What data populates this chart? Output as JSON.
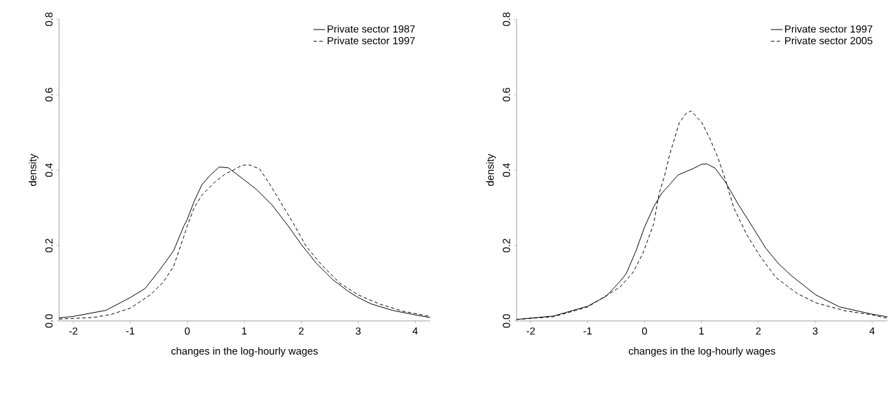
{
  "chart_data": [
    {
      "type": "line",
      "xlabel": "changes in the log-hourly wages",
      "ylabel": "density",
      "xlim": [
        -2.25,
        4.26
      ],
      "ylim": [
        0,
        0.8
      ],
      "xticks": [
        -2,
        -1,
        0,
        1,
        2,
        3,
        4
      ],
      "yticks": [
        {
          "value": 0,
          "label": "0.0"
        },
        {
          "value": 0.2,
          "label": "0.2"
        },
        {
          "value": 0.4,
          "label": "0.4"
        },
        {
          "value": 0.6,
          "label": "0.6"
        },
        {
          "value": 0.8,
          "label": "0.8"
        }
      ],
      "legend": "top right",
      "grid": false,
      "series": [
        {
          "name": "Private sector 1987",
          "color": "#000000",
          "line_style": "solid",
          "x": [
            -2.25,
            -2,
            -1.43,
            -1,
            -0.74,
            -0.47,
            -0.24,
            -0.06,
            0,
            0.12,
            0.26,
            0.4,
            0.56,
            0.72,
            0.86,
            0.99,
            1.22,
            1.49,
            1.77,
            2.0,
            2.27,
            2.55,
            2.82,
            3.0,
            3.23,
            3.6,
            4.0,
            4.26
          ],
          "values": [
            0.008,
            0.012,
            0.028,
            0.062,
            0.086,
            0.138,
            0.186,
            0.252,
            0.269,
            0.317,
            0.362,
            0.386,
            0.408,
            0.406,
            0.39,
            0.375,
            0.348,
            0.307,
            0.252,
            0.203,
            0.152,
            0.11,
            0.079,
            0.062,
            0.045,
            0.028,
            0.016,
            0.009
          ]
        },
        {
          "name": "Private sector 1997",
          "color": "#000000",
          "line_style": "dashed",
          "x": [
            -2.25,
            -1.66,
            -1.34,
            -1,
            -0.65,
            -0.42,
            -0.24,
            -0.06,
            0,
            0.12,
            0.26,
            0.49,
            0.67,
            0.81,
            0.95,
            1.08,
            1.27,
            1.45,
            1.63,
            1.86,
            2.09,
            2.36,
            2.68,
            3.0,
            3.37,
            3.78,
            4.26
          ],
          "values": [
            0.005,
            0.009,
            0.017,
            0.034,
            0.069,
            0.103,
            0.145,
            0.224,
            0.252,
            0.3,
            0.334,
            0.369,
            0.39,
            0.4,
            0.412,
            0.414,
            0.403,
            0.362,
            0.317,
            0.259,
            0.197,
            0.148,
            0.1,
            0.069,
            0.045,
            0.026,
            0.012
          ]
        }
      ]
    },
    {
      "type": "line",
      "xlabel": "changes in the log-hourly wages",
      "ylabel": "density",
      "xlim": [
        -2.25,
        4.27
      ],
      "ylim": [
        0,
        0.8
      ],
      "xticks": [
        -2,
        -1,
        0,
        1,
        2,
        3,
        4
      ],
      "yticks": [
        {
          "value": 0,
          "label": "0.0"
        },
        {
          "value": 0.2,
          "label": "0.2"
        },
        {
          "value": 0.4,
          "label": "0.4"
        },
        {
          "value": 0.6,
          "label": "0.6"
        },
        {
          "value": 0.8,
          "label": "0.8"
        }
      ],
      "legend": "top right",
      "grid": false,
      "series": [
        {
          "name": "Private sector 1997",
          "color": "#000000",
          "line_style": "solid",
          "x": [
            -2.25,
            -1.6,
            -1,
            -0.67,
            -0.43,
            -0.32,
            -0.15,
            0,
            0.16,
            0.3,
            0.45,
            0.59,
            0.73,
            0.87,
            1.01,
            1.1,
            1.24,
            1.43,
            1.66,
            1.9,
            2.13,
            2.36,
            2.59,
            3.01,
            3.43,
            4.0,
            4.27
          ],
          "values": [
            0.004,
            0.013,
            0.039,
            0.066,
            0.105,
            0.126,
            0.186,
            0.249,
            0.302,
            0.338,
            0.363,
            0.387,
            0.396,
            0.405,
            0.416,
            0.416,
            0.405,
            0.366,
            0.306,
            0.249,
            0.193,
            0.151,
            0.119,
            0.069,
            0.037,
            0.018,
            0.011
          ]
        },
        {
          "name": "Private sector 2005",
          "color": "#000000",
          "line_style": "dashed",
          "x": [
            -2.25,
            -1.6,
            -1,
            -0.76,
            -0.43,
            -0.2,
            -0.03,
            0.16,
            0.25,
            0.35,
            0.44,
            0.61,
            0.73,
            0.82,
            1.01,
            1.15,
            1.29,
            1.43,
            1.57,
            1.8,
            2.03,
            2.31,
            2.68,
            3.01,
            3.52,
            4.0,
            4.27
          ],
          "values": [
            0.004,
            0.011,
            0.037,
            0.059,
            0.09,
            0.129,
            0.179,
            0.257,
            0.334,
            0.384,
            0.44,
            0.525,
            0.55,
            0.557,
            0.525,
            0.483,
            0.433,
            0.37,
            0.299,
            0.228,
            0.172,
            0.115,
            0.073,
            0.048,
            0.027,
            0.016,
            0.007
          ]
        }
      ]
    }
  ]
}
